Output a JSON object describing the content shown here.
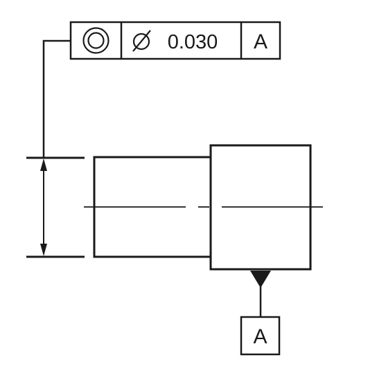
{
  "feature_control_frame": {
    "symbol": "concentricity-icon",
    "diameter_symbol": "⌀",
    "tolerance": "0.030",
    "datum": "A"
  },
  "datum_feature": {
    "label": "A"
  },
  "colors": {
    "line": "#1a1a1a",
    "background": "#ffffff"
  }
}
